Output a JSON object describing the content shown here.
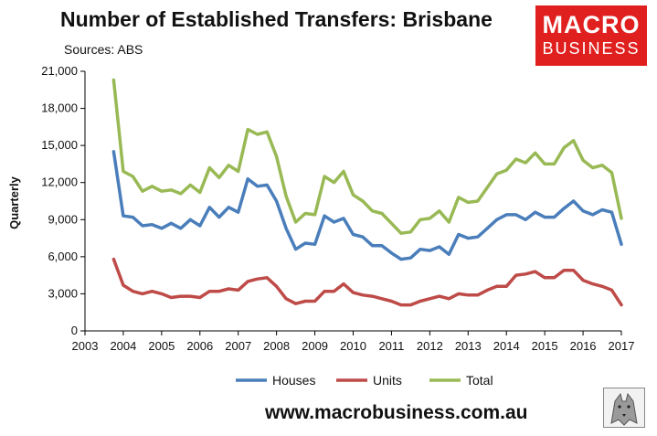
{
  "chart_data": {
    "type": "line",
    "title": "Number of Established Transfers: Brisbane",
    "subtitle": "Sources: ABS",
    "xlabel": "",
    "ylabel": "Quarterly",
    "ylim": [
      0,
      21000
    ],
    "xlim": [
      2003,
      2017
    ],
    "yticks": [
      "0",
      "3,000",
      "6,000",
      "9,000",
      "12,000",
      "15,000",
      "18,000",
      "21,000"
    ],
    "xticks": [
      "2003",
      "2004",
      "2005",
      "2006",
      "2007",
      "2008",
      "2009",
      "2010",
      "2011",
      "2012",
      "2013",
      "2014",
      "2015",
      "2016",
      "2017"
    ],
    "legend_position": "bottom",
    "grid": false,
    "x": [
      "Sep 2003",
      "Dec 2003",
      "Mar 2004",
      "Jun 2004",
      "Sep 2004",
      "Dec 2004",
      "Mar 2005",
      "Jun 2005",
      "Sep 2005",
      "Dec 2005",
      "Mar 2006",
      "Jun 2006",
      "Sep 2006",
      "Dec 2006",
      "Mar 2007",
      "Jun 2007",
      "Sep 2007",
      "Dec 2007",
      "Mar 2008",
      "Jun 2008",
      "Sep 2008",
      "Dec 2008",
      "Mar 2009",
      "Jun 2009",
      "Sep 2009",
      "Dec 2009",
      "Mar 2010",
      "Jun 2010",
      "Sep 2010",
      "Dec 2010",
      "Mar 2011",
      "Jun 2011",
      "Sep 2011",
      "Dec 2011",
      "Mar 2012",
      "Jun 2012",
      "Sep 2012",
      "Dec 2012",
      "Mar 2013",
      "Jun 2013",
      "Sep 2013",
      "Dec 2013",
      "Mar 2014",
      "Jun 2014",
      "Sep 2014",
      "Dec 2014",
      "Mar 2015",
      "Jun 2015",
      "Sep 2015",
      "Dec 2015",
      "Mar 2016",
      "Jun 2016",
      "Sep 2016",
      "Dec 2016"
    ],
    "series": [
      {
        "name": "Houses",
        "color": "#4a7ebb",
        "values": [
          14500,
          9300,
          9200,
          8500,
          8600,
          8300,
          8700,
          8300,
          9000,
          8500,
          10000,
          9200,
          10000,
          9600,
          12300,
          11700,
          11800,
          10500,
          8300,
          6600,
          7100,
          7000,
          9300,
          8800,
          9100,
          7800,
          7600,
          6900,
          6900,
          6300,
          5800,
          5900,
          6600,
          6500,
          6800,
          6200,
          7800,
          7500,
          7600,
          8300,
          9000,
          9400,
          9400,
          9000,
          9600,
          9200,
          9200,
          9900,
          10500,
          9700,
          9400,
          9800,
          9600,
          7000
        ]
      },
      {
        "name": "Units",
        "color": "#be4b48",
        "values": [
          5800,
          3700,
          3200,
          3000,
          3200,
          3000,
          2700,
          2800,
          2800,
          2700,
          3200,
          3200,
          3400,
          3300,
          4000,
          4200,
          4300,
          3600,
          2600,
          2200,
          2400,
          2400,
          3200,
          3200,
          3800,
          3100,
          2900,
          2800,
          2600,
          2400,
          2100,
          2100,
          2400,
          2600,
          2800,
          2600,
          3000,
          2900,
          2900,
          3300,
          3600,
          3600,
          4500,
          4600,
          4800,
          4300,
          4300,
          4900,
          4900,
          4100,
          3800,
          3600,
          3300,
          2100
        ]
      },
      {
        "name": "Total",
        "color": "#98b954",
        "values": [
          20300,
          12900,
          12500,
          11300,
          11700,
          11300,
          11400,
          11100,
          11800,
          11200,
          13200,
          12400,
          13400,
          12900,
          16300,
          15900,
          16100,
          14100,
          10900,
          8800,
          9500,
          9400,
          12500,
          12000,
          12900,
          11000,
          10500,
          9700,
          9500,
          8700,
          7900,
          8000,
          9000,
          9100,
          9700,
          8800,
          10800,
          10400,
          10500,
          11600,
          12700,
          13000,
          13900,
          13600,
          14400,
          13500,
          13500,
          14800,
          15400,
          13800,
          13200,
          13400,
          12800,
          9100
        ]
      }
    ]
  },
  "footer": {
    "website": "www.macrobusiness.com.au"
  },
  "logo": {
    "line1": "MACRO",
    "line2": "BUSINESS"
  }
}
